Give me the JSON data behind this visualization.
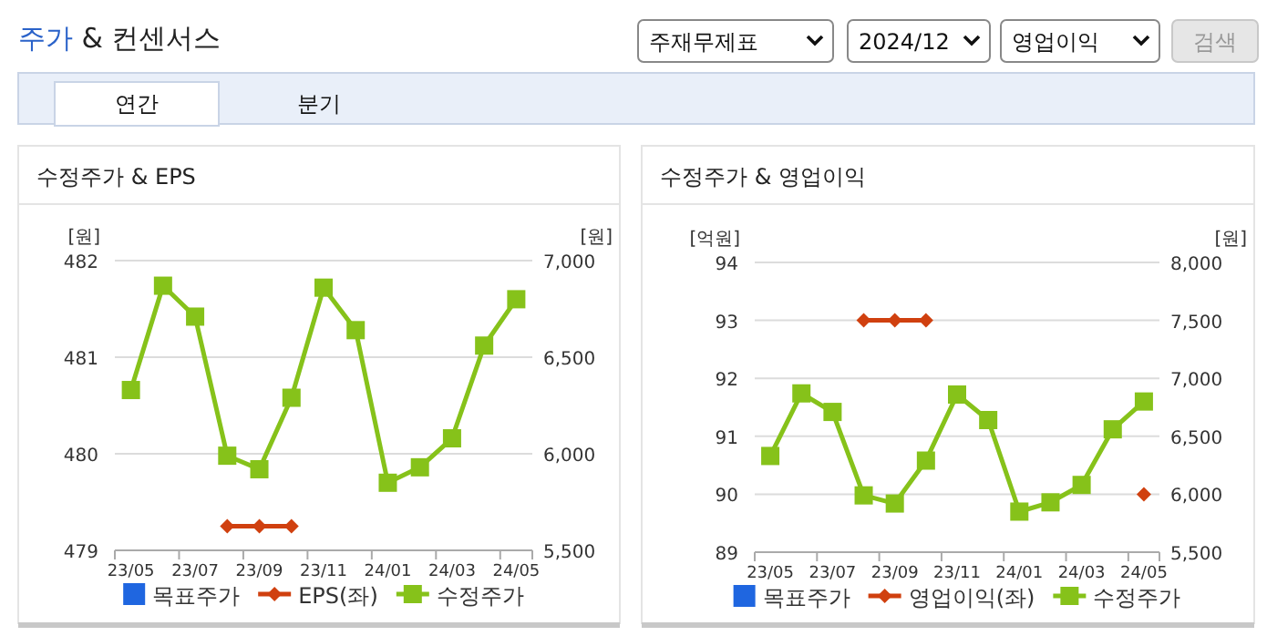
{
  "chart_data": [
    {
      "type": "other",
      "title": "주가 & 컨센서스",
      "annotations": [
        "주재무제표",
        "2024/12",
        "영업이익",
        "검색",
        "연간",
        "분기"
      ]
    },
    {
      "type": "line",
      "title": "수정주가 & EPS",
      "categories": [
        "23/05",
        null,
        "23/07",
        null,
        "23/09",
        null,
        "23/11",
        null,
        "24/01",
        null,
        "24/03",
        null,
        "24/05"
      ],
      "ylabel": "[원]",
      "y2label": "[원]",
      "ylim": [
        479,
        482
      ],
      "yticks": [
        479,
        480,
        481,
        482
      ],
      "y2lim": [
        5500,
        7000
      ],
      "y2ticks": [
        {
          "value": 5500,
          "label": "5,500"
        },
        {
          "value": 6000,
          "label": "6,000"
        },
        {
          "value": 6500,
          "label": "6,500"
        },
        {
          "value": 7000,
          "label": "7,000"
        }
      ],
      "grid": "y",
      "legend": "bottom",
      "series": [
        {
          "name": "목표주가",
          "type": "scatter",
          "marker": "square",
          "color": "#1f66e0",
          "values": [
            null,
            null,
            null,
            null,
            null,
            null,
            null,
            null,
            null,
            null,
            null,
            null,
            null
          ]
        },
        {
          "name": "EPS(좌)",
          "marker": "diamond",
          "color": "#d0400f",
          "values": [
            null,
            null,
            null,
            479.25,
            479.25,
            479.25,
            null,
            null,
            null,
            null,
            null,
            null,
            null
          ]
        },
        {
          "name": "수정주가",
          "axis": "y2",
          "marker": "square",
          "color": "#86c21a",
          "values": [
            6330,
            6870,
            6710,
            5990,
            5920,
            6290,
            6860,
            6640,
            5850,
            5930,
            6080,
            6560,
            6800
          ]
        }
      ]
    },
    {
      "type": "line",
      "title": "수정주가 & 영업이익",
      "categories": [
        "23/05",
        null,
        "23/07",
        null,
        "23/09",
        null,
        "23/11",
        null,
        "24/01",
        null,
        "24/03",
        null,
        "24/05"
      ],
      "ylabel": "[억원]",
      "y2label": "[원]",
      "ylim": [
        89,
        94
      ],
      "yticks": [
        89,
        90,
        91,
        92,
        93,
        94
      ],
      "y2lim": [
        5500,
        8000
      ],
      "y2ticks": [
        {
          "value": 5500,
          "label": "5,500"
        },
        {
          "value": 6000,
          "label": "6,000"
        },
        {
          "value": 6500,
          "label": "6,500"
        },
        {
          "value": 7000,
          "label": "7,000"
        },
        {
          "value": 7500,
          "label": "7,500"
        },
        {
          "value": 8000,
          "label": "8,000"
        }
      ],
      "grid": "y",
      "legend": "bottom",
      "series": [
        {
          "name": "목표주가",
          "type": "scatter",
          "marker": "square",
          "color": "#1f66e0",
          "values": [
            null,
            null,
            null,
            null,
            null,
            null,
            null,
            null,
            null,
            null,
            null,
            null,
            null
          ]
        },
        {
          "name": "영업이익(좌)",
          "marker": "diamond",
          "color": "#d0400f",
          "values": [
            null,
            null,
            null,
            93,
            93,
            93,
            null,
            null,
            null,
            null,
            null,
            null,
            90
          ]
        },
        {
          "name": "수정주가",
          "axis": "y2",
          "marker": "square",
          "color": "#86c21a",
          "values": [
            6330,
            6870,
            6710,
            5990,
            5920,
            6290,
            6860,
            6640,
            5850,
            5930,
            6080,
            6560,
            6800
          ]
        }
      ]
    }
  ]
}
